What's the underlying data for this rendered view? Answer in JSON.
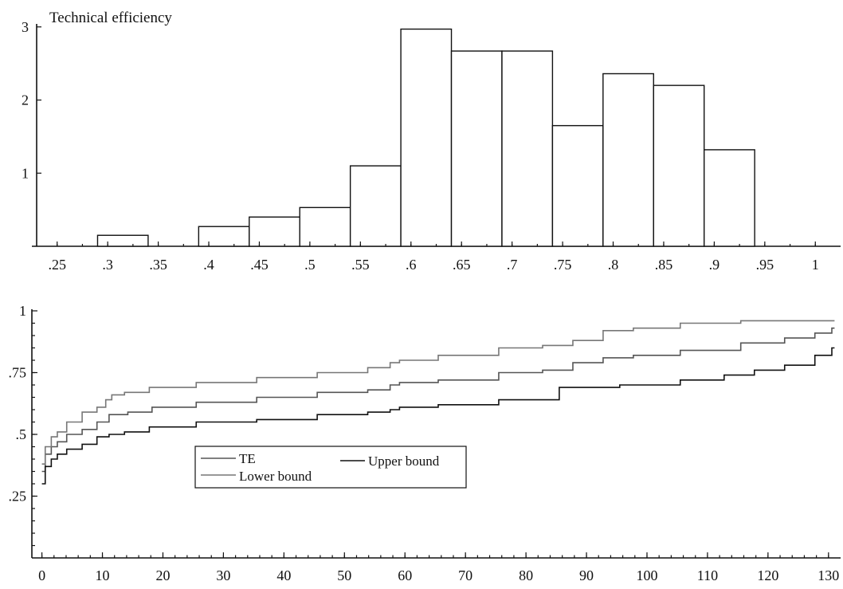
{
  "chart_data": [
    {
      "type": "bar",
      "title": "Technical efficiency",
      "xlim": [
        0.225,
        1.025
      ],
      "ylim": [
        0,
        3.15
      ],
      "bin_width": 0.05,
      "x_ticks": [
        0.25,
        0.3,
        0.35,
        0.4,
        0.45,
        0.5,
        0.55,
        0.6,
        0.65,
        0.7,
        0.75,
        0.8,
        0.85,
        0.9,
        0.95,
        1
      ],
      "x_tick_labels": [
        ".25",
        ".3",
        ".35",
        ".4",
        ".45",
        ".5",
        ".55",
        ".6",
        ".65",
        ".7",
        ".75",
        ".8",
        ".85",
        ".9",
        ".95",
        "1"
      ],
      "y_ticks": [
        1,
        2,
        3
      ],
      "y_tick_labels": [
        "1",
        "2",
        "3"
      ],
      "bins": [
        {
          "start": 0.29,
          "end": 0.34,
          "value": 0.15
        },
        {
          "start": 0.39,
          "end": 0.44,
          "value": 0.27
        },
        {
          "start": 0.44,
          "end": 0.49,
          "value": 0.4
        },
        {
          "start": 0.49,
          "end": 0.54,
          "value": 0.53
        },
        {
          "start": 0.54,
          "end": 0.59,
          "value": 1.1
        },
        {
          "start": 0.59,
          "end": 0.64,
          "value": 2.97
        },
        {
          "start": 0.64,
          "end": 0.69,
          "value": 2.67
        },
        {
          "start": 0.69,
          "end": 0.74,
          "value": 2.67
        },
        {
          "start": 0.74,
          "end": 0.79,
          "value": 1.65
        },
        {
          "start": 0.79,
          "end": 0.84,
          "value": 2.36
        },
        {
          "start": 0.84,
          "end": 0.89,
          "value": 2.2
        },
        {
          "start": 0.89,
          "end": 0.94,
          "value": 1.32
        }
      ],
      "grid": false
    },
    {
      "type": "line",
      "xlim": [
        -1,
        132
      ],
      "ylim": [
        0,
        1
      ],
      "x_ticks": [
        0,
        10,
        20,
        30,
        40,
        50,
        60,
        70,
        80,
        90,
        100,
        110,
        120,
        130
      ],
      "x_tick_labels": [
        "0",
        "10",
        "20",
        "30",
        "40",
        "50",
        "60",
        "70",
        "80",
        "90",
        "100",
        "110",
        "120",
        "130"
      ],
      "y_ticks": [
        0.25,
        0.5,
        0.75,
        1
      ],
      "y_tick_labels": [
        ".25",
        ".5",
        ".75",
        "1"
      ],
      "legend": {
        "placement": "center-left",
        "entries": [
          "TE",
          "Upper bound",
          "Lower bound"
        ]
      },
      "series": [
        {
          "name": "TE",
          "color": "#555555",
          "x": [
            0,
            1,
            2,
            3,
            5,
            8,
            10,
            12,
            16,
            20,
            30,
            40,
            50,
            57,
            58,
            60,
            70,
            80,
            85,
            90,
            95,
            100,
            110,
            120,
            125,
            130,
            131
          ],
          "values": [
            0.35,
            0.42,
            0.45,
            0.47,
            0.5,
            0.52,
            0.55,
            0.58,
            0.59,
            0.61,
            0.63,
            0.65,
            0.67,
            0.68,
            0.7,
            0.71,
            0.72,
            0.75,
            0.76,
            0.79,
            0.81,
            0.82,
            0.84,
            0.87,
            0.89,
            0.91,
            0.93
          ]
        },
        {
          "name": "Upper bound",
          "color": "#111111",
          "x": [
            0,
            1,
            2,
            3,
            5,
            8,
            10,
            12,
            15,
            20,
            30,
            40,
            50,
            57,
            58,
            60,
            70,
            80,
            90,
            100,
            110,
            115,
            120,
            125,
            130,
            131
          ],
          "values": [
            0.3,
            0.37,
            0.4,
            0.42,
            0.44,
            0.46,
            0.49,
            0.5,
            0.51,
            0.53,
            0.55,
            0.56,
            0.58,
            0.59,
            0.6,
            0.61,
            0.62,
            0.64,
            0.69,
            0.7,
            0.72,
            0.74,
            0.76,
            0.78,
            0.82,
            0.85
          ]
        },
        {
          "name": "Lower bound",
          "color": "#777777",
          "x": [
            0,
            1,
            2,
            3,
            5,
            8,
            10,
            11,
            12,
            15,
            20,
            30,
            40,
            50,
            57,
            58,
            60,
            70,
            80,
            85,
            90,
            95,
            100,
            110,
            120,
            130,
            131
          ],
          "values": [
            0.38,
            0.45,
            0.49,
            0.51,
            0.55,
            0.59,
            0.61,
            0.64,
            0.66,
            0.67,
            0.69,
            0.71,
            0.73,
            0.75,
            0.77,
            0.79,
            0.8,
            0.82,
            0.85,
            0.86,
            0.88,
            0.92,
            0.93,
            0.95,
            0.96,
            0.96,
            0.96
          ]
        }
      ],
      "grid": false
    }
  ]
}
